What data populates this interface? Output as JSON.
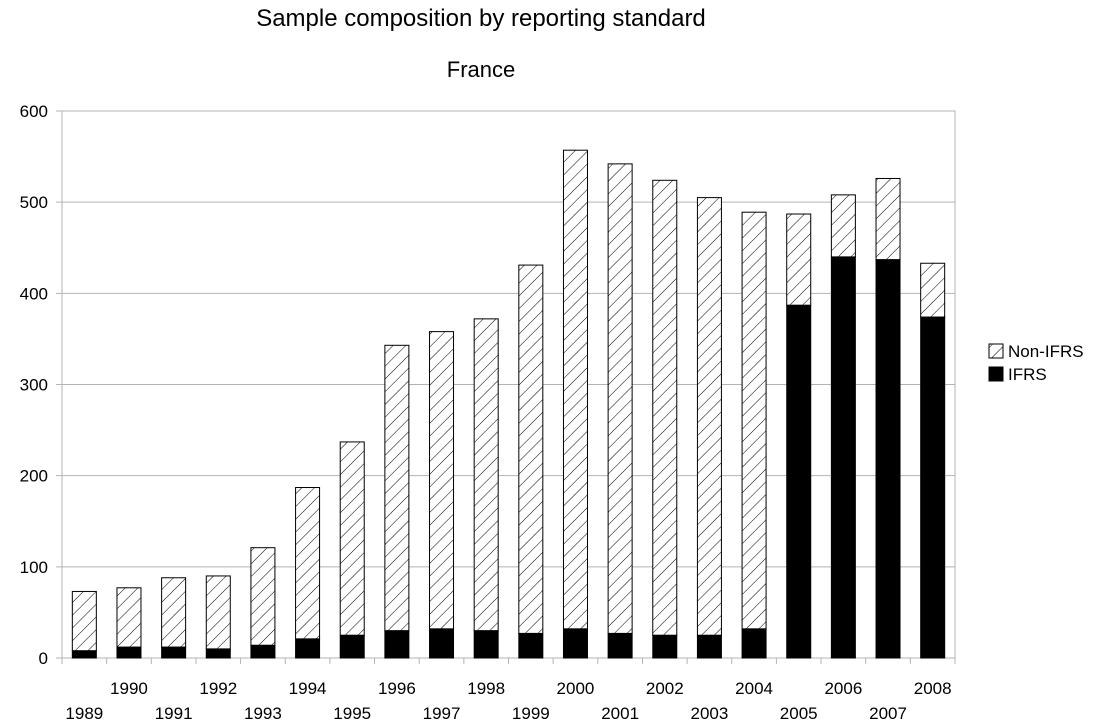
{
  "chart_data": {
    "type": "bar",
    "stacked": true,
    "title": "Sample composition by reporting standard",
    "subtitle": "France",
    "xlabel": "",
    "ylabel": "",
    "ylim": [
      0,
      600
    ],
    "yticks": [
      0,
      100,
      200,
      300,
      400,
      500,
      600
    ],
    "grid": true,
    "legend_position": "right",
    "categories": [
      "1989",
      "1990",
      "1991",
      "1992",
      "1993",
      "1994",
      "1995",
      "1996",
      "1997",
      "1998",
      "1999",
      "2000",
      "2001",
      "2002",
      "2003",
      "2004",
      "2005",
      "2006",
      "2007",
      "2008"
    ],
    "series": [
      {
        "name": "IFRS",
        "fill": "solid",
        "color": "#000000",
        "values": [
          8,
          12,
          12,
          10,
          14,
          21,
          25,
          30,
          32,
          30,
          27,
          32,
          27,
          25,
          25,
          32,
          387,
          440,
          437,
          374
        ]
      },
      {
        "name": "Non-IFRS",
        "fill": "hatched",
        "color": "#000000",
        "values": [
          65,
          65,
          76,
          80,
          107,
          166,
          212,
          313,
          326,
          342,
          404,
          525,
          515,
          499,
          480,
          457,
          100,
          68,
          89,
          59
        ]
      }
    ],
    "legend_order": [
      "Non-IFRS",
      "IFRS"
    ]
  }
}
